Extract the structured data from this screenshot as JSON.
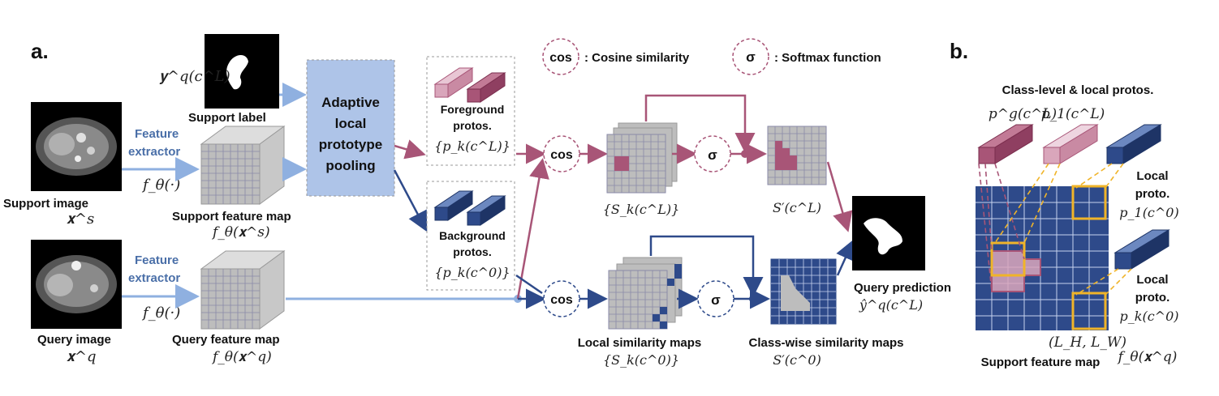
{
  "panel_a": {
    "label": "a.",
    "support_label_math": "𝐲^q(c^L)",
    "support_label": "Support label",
    "support_image": "Support image",
    "support_image_math": "𝐱^s",
    "feature_extractor_top": [
      "Feature",
      "extractor"
    ],
    "f_theta_top": "f_θ(·)",
    "support_feature_map": "Support feature map",
    "support_feature_map_math": "f_θ(𝐱^s)",
    "adaptive_pooling": [
      "Adaptive",
      "local",
      "prototype",
      "pooling"
    ],
    "foreground_protos": [
      "Foreground",
      "protos."
    ],
    "foreground_math": "{p_k(c^L)}",
    "background_protos": [
      "Background",
      "protos."
    ],
    "background_math": "{p_k(c^0)}",
    "cos_legend": "cos",
    "cos_legend_text": ": Cosine similarity",
    "sigma_legend": "σ",
    "sigma_legend_text": ": Softmax function",
    "cos_top": "cos",
    "cos_bottom": "cos",
    "sigma_top": "σ",
    "sigma_bottom": "σ",
    "sk_cl_math": "{S_k(c^L)}",
    "sprime_cl_math": "S′(c^L)",
    "query_image": "Query image",
    "query_image_math": "𝐱^q",
    "feature_extractor_bottom": [
      "Feature",
      "extractor"
    ],
    "f_theta_bottom": "f_θ(·)",
    "query_feature_map": "Query feature map",
    "query_feature_map_math": "f_θ(𝐱^q)",
    "local_similarity_maps": "Local similarity maps",
    "sk_c0_math": "{S_k(c^0)}",
    "classwise_similarity_maps": "Class-wise similarity maps",
    "sprime_c0_math": "S′(c^0)",
    "query_prediction": "Query prediction",
    "query_prediction_math": "ŷ^q(c^L)"
  },
  "panel_b": {
    "label": "b.",
    "title": "Class-level & local protos.",
    "pg_math": "p^g(c^L)",
    "p1_top_math": "p_1(c^L)",
    "local_proto_1": [
      "Local",
      "proto."
    ],
    "p1_c0_math": "p_1(c^0)",
    "local_proto_2": [
      "Local",
      "proto."
    ],
    "pk_c0_math": "p_k(c^0)",
    "lh_lw_math": "(L_H, L_W)",
    "support_feature_map": "Support feature map",
    "f_theta_xq_math": "f_θ(𝐱^q)"
  },
  "colors": {
    "pink": "#a85577",
    "pink_light": "#d9a6bb",
    "navy": "#2e4a8a",
    "light_blue": "#8fb0e0",
    "box_blue": "#aec4e8",
    "grid_gray": "#b6b6b6",
    "gold": "#f0b429"
  }
}
